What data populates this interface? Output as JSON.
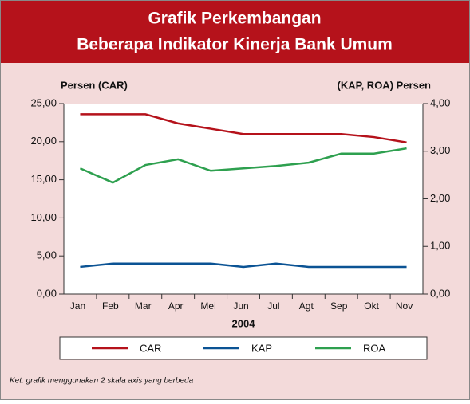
{
  "chart_data": {
    "type": "line",
    "title": [
      "Grafik  Perkembangan",
      "Beberapa Indikator Kinerja Bank Umum"
    ],
    "y_label": "Persen (CAR)",
    "y2_label": "(KAP, ROA) Persen",
    "x_label": "2004",
    "note": "Ket: grafik menggunakan 2 skala axis yang berbeda",
    "categories": [
      "Jan",
      "Feb",
      "Mar",
      "Apr",
      "Mei",
      "Jun",
      "Jul",
      "Agt",
      "Sep",
      "Okt",
      "Nov"
    ],
    "series": [
      {
        "name": "CAR",
        "color": "#b5121b",
        "axis": "y",
        "values": [
          23.6,
          23.6,
          23.6,
          22.4,
          21.7,
          21.0,
          21.0,
          21.0,
          21.0,
          20.6,
          19.9
        ]
      },
      {
        "name": "KAP",
        "color": "#0b5394",
        "axis": "y2",
        "values": [
          0.57,
          0.64,
          0.64,
          0.64,
          0.64,
          0.57,
          0.64,
          0.57,
          0.57,
          0.57,
          0.57
        ]
      },
      {
        "name": "ROA",
        "color": "#2ea04f",
        "axis": "y2",
        "values": [
          2.64,
          2.34,
          2.71,
          2.83,
          2.59,
          2.64,
          2.69,
          2.76,
          2.95,
          2.95,
          3.06
        ]
      }
    ],
    "ylim": [
      0,
      25
    ],
    "yticks": [
      {
        "value": 0,
        "label": "0,00"
      },
      {
        "value": 5,
        "label": "5,00"
      },
      {
        "value": 10,
        "label": "10,00"
      },
      {
        "value": 15,
        "label": "15,00"
      },
      {
        "value": 20,
        "label": "20,00"
      },
      {
        "value": 25,
        "label": "25,00"
      }
    ],
    "y2lim": [
      0,
      4
    ],
    "y2ticks": [
      {
        "value": 0,
        "label": "0,00"
      },
      {
        "value": 1,
        "label": "1,00"
      },
      {
        "value": 2,
        "label": "2,00"
      },
      {
        "value": 3,
        "label": "3,00"
      },
      {
        "value": 4,
        "label": "4,00"
      }
    ]
  }
}
